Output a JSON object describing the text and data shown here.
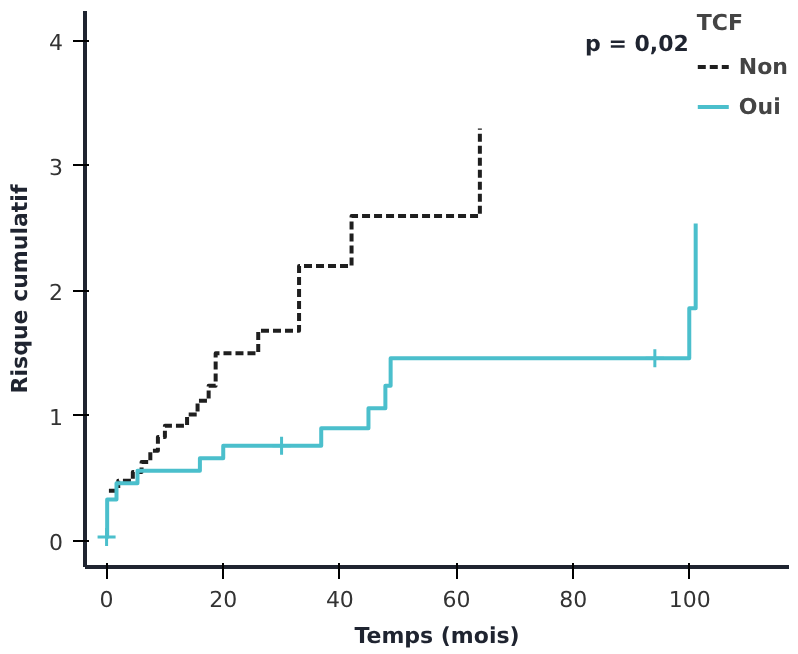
{
  "chart_data": {
    "type": "step",
    "xlabel": "Temps (mois)",
    "ylabel": "Risque cumulatif",
    "legend_title": "TCF",
    "legend": "top right",
    "xlim": [
      -3.7,
      117
    ],
    "ylim": [
      -0.21,
      4.24
    ],
    "xticks": [
      0,
      20,
      40,
      60,
      80,
      100
    ],
    "yticks": [
      0,
      1,
      2,
      3,
      4
    ],
    "annotations": [
      "p = 0,02"
    ],
    "series": [
      {
        "name": "Non",
        "color": "#1f1f1f",
        "line_style": "dashed",
        "x": [
          0.4,
          2,
          4.5,
          6,
          7.5,
          8.8,
          10,
          13.8,
          15.6,
          17.5,
          18.7,
          26,
          33,
          42,
          64
        ],
        "values": [
          0.4,
          0.48,
          0.55,
          0.63,
          0.72,
          0.83,
          0.92,
          1.01,
          1.12,
          1.24,
          1.5,
          1.68,
          2.2,
          2.6,
          3.3
        ]
      },
      {
        "name": "Oui",
        "color": "#4bbfcc",
        "line_style": "solid",
        "x": [
          0,
          0.1,
          1.7,
          5.3,
          16,
          20,
          36.8,
          44.9,
          47.8,
          48.7,
          99.9,
          101
        ],
        "values": [
          0.03,
          0.33,
          0.46,
          0.56,
          0.66,
          0.76,
          0.9,
          1.06,
          1.24,
          1.46,
          1.86,
          2.54
        ]
      },
      {
        "type": "scatter",
        "color": "#4bbfcc",
        "marker": "cross",
        "x": [
          0,
          30,
          94
        ],
        "values": [
          0.03,
          0.76,
          1.46
        ]
      }
    ]
  }
}
